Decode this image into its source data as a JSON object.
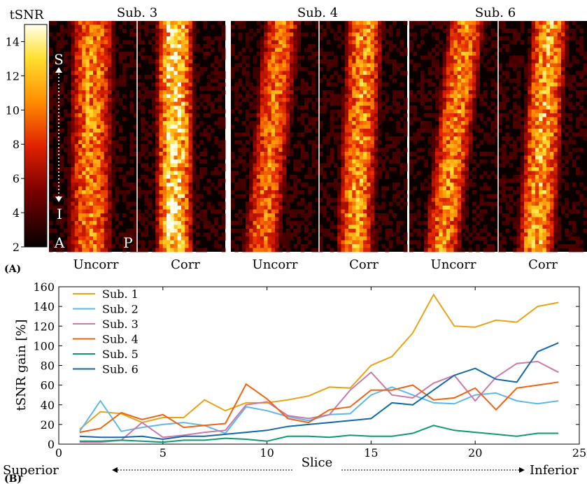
{
  "panel_a": {
    "label": "(A)",
    "colorbar": {
      "title": "tSNR",
      "ticks": [
        "2",
        "4",
        "6",
        "8",
        "10",
        "12",
        "14"
      ],
      "tick_values": [
        2,
        4,
        6,
        8,
        10,
        12,
        14
      ],
      "range": [
        2,
        15
      ]
    },
    "subjects": [
      {
        "title": "Sub. 3",
        "left_label": "Uncorr",
        "right_label": "Corr"
      },
      {
        "title": "Sub. 4",
        "left_label": "Uncorr",
        "right_label": "Corr"
      },
      {
        "title": "Sub. 6",
        "left_label": "Uncorr",
        "right_label": "Corr"
      }
    ],
    "orientation": {
      "superior": "S",
      "inferior": "I",
      "anterior": "A",
      "posterior": "P"
    }
  },
  "panel_b": {
    "label": "(B)",
    "direction_left": "Superior",
    "direction_right": "Inferior"
  },
  "chart_data": {
    "type": "line",
    "title": "",
    "xlabel": "Slice",
    "ylabel": "tSNR gain [%]",
    "xlim": [
      0,
      25
    ],
    "ylim": [
      0,
      160
    ],
    "xticks": [
      0,
      5,
      10,
      15,
      20,
      25
    ],
    "yticks": [
      0,
      20,
      40,
      60,
      80,
      100,
      120,
      140,
      160
    ],
    "grid": false,
    "legend_position": "top-left",
    "x": [
      1,
      2,
      3,
      4,
      5,
      6,
      7,
      8,
      9,
      10,
      11,
      12,
      13,
      14,
      15,
      16,
      17,
      18,
      19,
      20,
      21,
      22,
      23,
      24
    ],
    "series": [
      {
        "name": "Sub. 1",
        "color": "#e8a317",
        "values": [
          15,
          33,
          31,
          22,
          27,
          27,
          45,
          34,
          42,
          42,
          45,
          49,
          58,
          57,
          80,
          89,
          113,
          152,
          120,
          119,
          126,
          124,
          140,
          144
        ]
      },
      {
        "name": "Sub. 2",
        "color": "#5eb8e8",
        "values": [
          13,
          44,
          13,
          17,
          20,
          22,
          19,
          11,
          38,
          34,
          28,
          24,
          30,
          31,
          50,
          58,
          50,
          42,
          41,
          50,
          52,
          44,
          41,
          44
        ]
      },
      {
        "name": "Sub. 3",
        "color": "#cc79a7",
        "values": [
          2,
          2,
          4,
          22,
          7,
          9,
          12,
          14,
          40,
          43,
          29,
          26,
          30,
          55,
          73,
          50,
          47,
          62,
          70,
          44,
          68,
          82,
          84,
          73
        ]
      },
      {
        "name": "Sub. 4",
        "color": "#ee6314",
        "values": [
          12,
          16,
          32,
          25,
          30,
          17,
          19,
          21,
          61,
          46,
          26,
          22,
          35,
          38,
          55,
          55,
          60,
          45,
          47,
          57,
          35,
          57,
          60,
          63
        ]
      },
      {
        "name": "Sub. 5",
        "color": "#0e9a73",
        "values": [
          3,
          3,
          4,
          3,
          2,
          4,
          4,
          6,
          5,
          3,
          8,
          8,
          7,
          9,
          8,
          8,
          11,
          19,
          14,
          12,
          10,
          8,
          11,
          11
        ]
      },
      {
        "name": "Sub. 6",
        "color": "#1269a6",
        "values": [
          8,
          7,
          7,
          8,
          5,
          8,
          8,
          10,
          12,
          14,
          18,
          20,
          22,
          24,
          26,
          42,
          40,
          55,
          70,
          77,
          66,
          63,
          94,
          103
        ]
      }
    ]
  }
}
